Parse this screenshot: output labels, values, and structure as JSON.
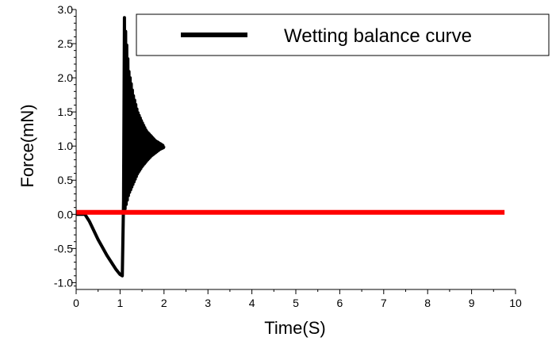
{
  "chart_data": {
    "type": "line",
    "xlabel": "Time(S)",
    "ylabel": "Force(mN)",
    "xlim": [
      0,
      10
    ],
    "ylim": [
      -1.1,
      3.0
    ],
    "x_ticks": [
      0,
      1,
      2,
      3,
      4,
      5,
      6,
      7,
      8,
      9,
      10
    ],
    "x_tick_labels": [
      "0",
      "1",
      "2",
      "3",
      "4",
      "5",
      "6",
      "7",
      "8",
      "9",
      "10"
    ],
    "y_ticks": [
      -1.0,
      -0.5,
      0.0,
      0.5,
      1.0,
      1.5,
      2.0,
      2.5,
      3.0
    ],
    "y_tick_labels": [
      "-1.0",
      "-0.5",
      "0.0",
      "0.5",
      "1.0",
      "1.5",
      "2.0",
      "2.5",
      "3.0"
    ],
    "grid": false,
    "legend_position": "top-right",
    "series": [
      {
        "name": "Wetting balance curve",
        "color": "#000000",
        "x": [
          0.0,
          0.2,
          0.3,
          0.5,
          0.7,
          0.9,
          1.0,
          1.05,
          1.08,
          1.1,
          1.15,
          1.2,
          1.3,
          1.4,
          1.5,
          1.6,
          1.7,
          1.8,
          1.9,
          2.0
        ],
        "y": [
          0.0,
          0.0,
          -0.1,
          -0.37,
          -0.6,
          -0.8,
          -0.88,
          -0.9,
          0.2,
          2.88,
          2.3,
          2.0,
          1.75,
          1.55,
          1.4,
          1.28,
          1.18,
          1.1,
          1.05,
          1.0
        ],
        "oscillation_envelope": {
          "x": [
            1.1,
            1.2,
            1.3,
            1.4,
            1.5,
            1.6,
            1.7,
            1.8,
            1.9,
            2.0
          ],
          "upper": [
            2.88,
            2.1,
            1.75,
            1.5,
            1.35,
            1.22,
            1.15,
            1.08,
            1.04,
            1.0
          ],
          "lower": [
            0.05,
            0.3,
            0.45,
            0.6,
            0.7,
            0.78,
            0.85,
            0.9,
            0.95,
            0.98
          ]
        }
      },
      {
        "name": "",
        "color": "#ff0000",
        "x": [
          0.0,
          9.75
        ],
        "y": [
          0.03,
          0.03
        ]
      }
    ]
  }
}
